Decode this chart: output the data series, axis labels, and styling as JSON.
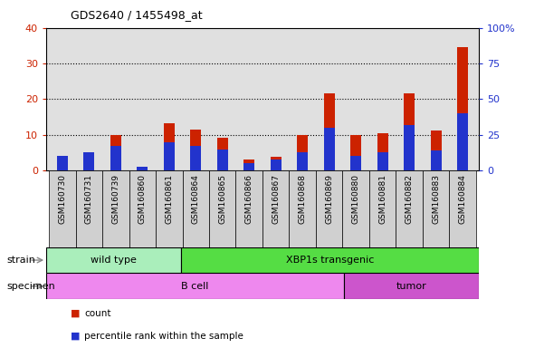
{
  "title": "GDS2640 / 1455498_at",
  "samples": [
    "GSM160730",
    "GSM160731",
    "GSM160739",
    "GSM160860",
    "GSM160861",
    "GSM160864",
    "GSM160865",
    "GSM160866",
    "GSM160867",
    "GSM160868",
    "GSM160869",
    "GSM160880",
    "GSM160881",
    "GSM160882",
    "GSM160883",
    "GSM160884"
  ],
  "count_values": [
    3.0,
    4.0,
    10.0,
    1.0,
    13.2,
    11.5,
    9.3,
    3.2,
    3.8,
    10.0,
    21.7,
    10.0,
    10.5,
    21.7,
    11.3,
    34.5
  ],
  "percentile_values": [
    10.0,
    12.5,
    17.5,
    2.5,
    20.0,
    17.5,
    15.0,
    5.0,
    7.5,
    12.5,
    30.0,
    10.0,
    12.5,
    32.0,
    14.0,
    40.0
  ],
  "ylim_left": [
    0,
    40
  ],
  "ylim_right": [
    0,
    100
  ],
  "yticks_left": [
    0,
    10,
    20,
    30,
    40
  ],
  "yticks_right": [
    0,
    25,
    50,
    75,
    100
  ],
  "yticklabels_right": [
    "0",
    "25",
    "50",
    "75",
    "100%"
  ],
  "bar_color_red": "#cc2200",
  "bar_color_blue": "#2233cc",
  "strain_groups": [
    {
      "label": "wild type",
      "start": 0,
      "end": 5,
      "color": "#aaeebb"
    },
    {
      "label": "XBP1s transgenic",
      "start": 5,
      "end": 16,
      "color": "#55dd44"
    }
  ],
  "specimen_groups": [
    {
      "label": "B cell",
      "start": 0,
      "end": 11,
      "color": "#ee88ee"
    },
    {
      "label": "tumor",
      "start": 11,
      "end": 16,
      "color": "#cc55cc"
    }
  ],
  "legend_count_label": "count",
  "legend_pct_label": "percentile rank within the sample",
  "strain_label": "strain",
  "specimen_label": "specimen",
  "bar_width": 0.4,
  "plot_bg": "#e0e0e0",
  "tick_area_bg": "#d0d0d0",
  "gridline_color": "#000000",
  "left_tick_color": "#cc2200",
  "right_tick_color": "#2233cc"
}
